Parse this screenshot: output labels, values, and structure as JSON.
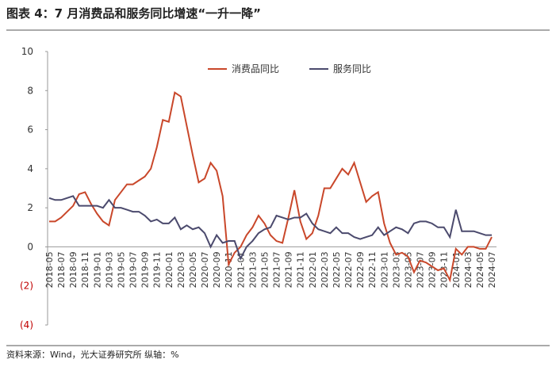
{
  "chart_data": {
    "type": "line",
    "title": "图表 4：7 月消费品和服务同比增速“一升一降”",
    "source": "资料来源：Wind，光大证券研究所   纵轴：%",
    "categories": [
      "2018-05",
      null,
      "2018-07",
      null,
      "2018-09",
      null,
      "2018-11",
      null,
      "2019-01",
      null,
      "2019-03",
      null,
      "2019-05",
      null,
      "2019-07",
      null,
      "2019-09",
      null,
      "2019-11",
      null,
      "2020-01",
      null,
      "2020-03",
      null,
      "2020-05",
      null,
      "2020-07",
      null,
      "2020-09",
      null,
      "2020-11",
      null,
      "2021-01",
      null,
      "2021-03",
      null,
      "2021-05",
      null,
      "2021-07",
      null,
      "2021-09",
      null,
      "2021-11",
      null,
      "2022-01",
      null,
      "2022-03",
      null,
      "2022-05",
      null,
      "2022-07",
      null,
      "2022-09",
      null,
      "2022-11",
      null,
      "2023-01",
      null,
      "2023-03",
      null,
      "2023-05",
      null,
      "2023-07",
      null,
      "2023-09",
      null,
      "2023-11",
      null,
      "2024-01",
      null,
      "2024-03",
      null,
      "2024-05",
      null,
      "2024-07"
    ],
    "series": [
      {
        "name": "消费品同比",
        "color": "#c9472a",
        "values": [
          1.3,
          1.3,
          1.5,
          1.8,
          2.1,
          2.7,
          2.8,
          2.2,
          1.7,
          1.3,
          1.1,
          2.4,
          2.8,
          3.2,
          3.2,
          3.4,
          3.6,
          4.0,
          5.1,
          6.5,
          6.4,
          7.9,
          7.7,
          6.2,
          4.7,
          3.3,
          3.5,
          4.3,
          3.9,
          2.6,
          -0.9,
          -0.3,
          0.0,
          0.6,
          1.0,
          1.6,
          1.2,
          0.6,
          0.3,
          0.2,
          1.5,
          2.9,
          1.3,
          0.4,
          0.7,
          1.6,
          3.0,
          3.0,
          3.5,
          4.0,
          3.7,
          4.3,
          3.3,
          2.3,
          2.6,
          2.8,
          1.2,
          0.2,
          -0.4,
          -0.3,
          -0.5,
          -1.3,
          -0.7,
          -0.8,
          -1.0,
          -1.2,
          -1.1,
          -1.7,
          -0.1,
          -0.4,
          0.0,
          0.0,
          -0.1,
          -0.1,
          0.5
        ]
      },
      {
        "name": "服务同比",
        "color": "#4b4a6d",
        "values": [
          2.5,
          2.4,
          2.4,
          2.5,
          2.6,
          2.1,
          2.1,
          2.1,
          2.1,
          2.0,
          2.4,
          2.0,
          2.0,
          1.9,
          1.8,
          1.8,
          1.6,
          1.3,
          1.4,
          1.2,
          1.2,
          1.5,
          0.9,
          1.1,
          0.9,
          1.0,
          0.7,
          0.0,
          0.6,
          0.2,
          0.3,
          0.3,
          -0.6,
          0.0,
          0.3,
          0.7,
          0.9,
          1.0,
          1.6,
          1.5,
          1.4,
          1.5,
          1.5,
          1.7,
          1.2,
          0.9,
          0.8,
          0.7,
          1.0,
          0.7,
          0.7,
          0.5,
          0.4,
          0.5,
          0.6,
          1.0,
          0.6,
          0.8,
          1.0,
          0.9,
          0.7,
          1.2,
          1.3,
          1.3,
          1.2,
          1.0,
          1.0,
          0.5,
          1.9,
          0.8,
          0.8,
          0.8,
          0.7,
          0.6,
          0.6
        ]
      }
    ],
    "ylim": [
      -4,
      10
    ],
    "yticks": [
      {
        "value": -4,
        "label": "(4)"
      },
      {
        "value": -2,
        "label": "(2)"
      },
      0,
      2,
      4,
      6,
      8,
      10
    ],
    "legend": "top"
  }
}
